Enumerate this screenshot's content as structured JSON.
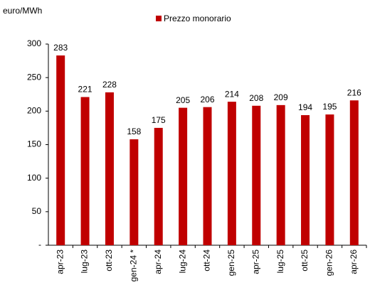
{
  "chart_data": {
    "type": "bar",
    "y_label": "euro/MWh",
    "categories": [
      "apr-23",
      "lug-23",
      "ott-23",
      "gen-24 *",
      "apr-24",
      "lug-24",
      "ott-24",
      "gen-25",
      "apr-25",
      "lug-25",
      "ott-25",
      "gen-26",
      "apr-26"
    ],
    "series": [
      {
        "name": "Prezzo monorario",
        "color": "#c00000",
        "values": [
          283,
          221,
          228,
          158,
          175,
          205,
          206,
          214,
          208,
          209,
          194,
          195,
          216
        ]
      }
    ],
    "ylim": [
      0,
      300
    ],
    "yticks": [
      {
        "value": 0,
        "label": "-"
      },
      50,
      100,
      150,
      200,
      250,
      300
    ],
    "grid": false
  }
}
